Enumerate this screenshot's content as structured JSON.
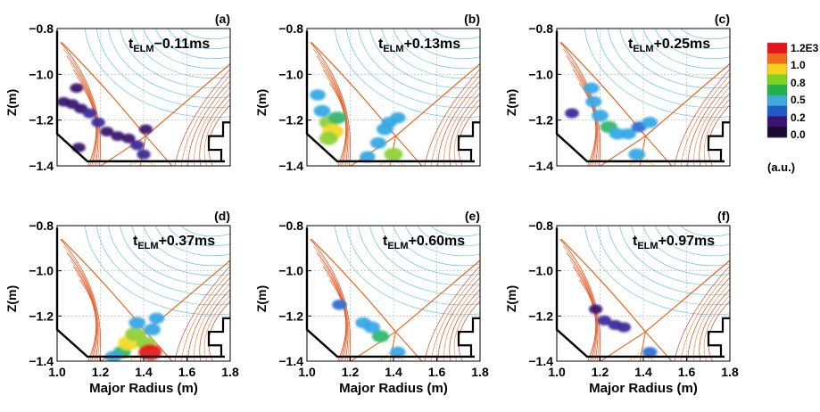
{
  "colorbar": {
    "ticks": [
      "1.2E3",
      "1.0",
      "0.8",
      "0.5",
      "0.2",
      "0.0"
    ],
    "unit": "(a.u.)",
    "colors": [
      "#e8141b",
      "#f26b1d",
      "#f7d21c",
      "#7ed321",
      "#22b14c",
      "#3fa9e0",
      "#1e5bc6",
      "#3a1470",
      "#1a0a30"
    ]
  },
  "chart_data": [
    {
      "type": "heatmap",
      "panel": "(a)",
      "time_prefix": "t",
      "time_sub": "ELM",
      "time_suffix": "−0.11ms",
      "ylabel": "Z(m)",
      "xlabel": "",
      "xlim": [
        1.0,
        1.8
      ],
      "ylim": [
        -1.4,
        -0.8
      ],
      "x_ticks": [],
      "y_ticks": [
        "−0.8",
        "−1.0",
        "−1.2",
        "−1.4"
      ],
      "blobs": [
        {
          "x": 1.03,
          "y": -1.12,
          "v": 0.08
        },
        {
          "x": 1.07,
          "y": -1.13,
          "v": 0.1
        },
        {
          "x": 1.11,
          "y": -1.15,
          "v": 0.1
        },
        {
          "x": 1.15,
          "y": -1.17,
          "v": 0.12
        },
        {
          "x": 1.19,
          "y": -1.21,
          "v": 0.12
        },
        {
          "x": 1.23,
          "y": -1.25,
          "v": 0.1
        },
        {
          "x": 1.28,
          "y": -1.27,
          "v": 0.1
        },
        {
          "x": 1.33,
          "y": -1.28,
          "v": 0.1
        },
        {
          "x": 1.37,
          "y": -1.31,
          "v": 0.12
        },
        {
          "x": 1.4,
          "y": -1.35,
          "v": 0.12
        },
        {
          "x": 1.09,
          "y": -1.06,
          "v": 0.08
        },
        {
          "x": 1.41,
          "y": -1.24,
          "v": 0.1
        },
        {
          "x": 1.1,
          "y": -1.32,
          "v": 0.1
        }
      ]
    },
    {
      "type": "heatmap",
      "panel": "(b)",
      "time_prefix": "t",
      "time_sub": "ELM",
      "time_suffix": "+0.13ms",
      "ylabel": "Z(m)",
      "xlabel": "",
      "xlim": [
        1.0,
        1.8
      ],
      "ylim": [
        -1.4,
        -0.8
      ],
      "x_ticks": [],
      "y_ticks": [
        "−0.8",
        "−1.0",
        "−1.2",
        "−1.4"
      ],
      "blobs": [
        {
          "x": 1.05,
          "y": -1.09,
          "v": 0.3
        },
        {
          "x": 1.07,
          "y": -1.16,
          "v": 0.4
        },
        {
          "x": 1.1,
          "y": -1.21,
          "v": 0.6
        },
        {
          "x": 1.12,
          "y": -1.25,
          "v": 0.85
        },
        {
          "x": 1.1,
          "y": -1.28,
          "v": 0.6
        },
        {
          "x": 1.14,
          "y": -1.19,
          "v": 0.5
        },
        {
          "x": 1.28,
          "y": -1.36,
          "v": 0.3
        },
        {
          "x": 1.33,
          "y": -1.3,
          "v": 0.35
        },
        {
          "x": 1.36,
          "y": -1.24,
          "v": 0.4
        },
        {
          "x": 1.38,
          "y": -1.21,
          "v": 0.3
        },
        {
          "x": 1.4,
          "y": -1.35,
          "v": 0.6
        },
        {
          "x": 1.42,
          "y": -1.19,
          "v": 0.3
        }
      ]
    },
    {
      "type": "heatmap",
      "panel": "(c)",
      "time_prefix": "t",
      "time_sub": "ELM",
      "time_suffix": "+0.25ms",
      "ylabel": "Z(m)",
      "xlabel": "",
      "xlim": [
        1.0,
        1.8
      ],
      "ylim": [
        -1.4,
        -0.8
      ],
      "x_ticks": [],
      "y_ticks": [
        "−0.8",
        "−1.0",
        "−1.2",
        "−1.4"
      ],
      "blobs": [
        {
          "x": 1.16,
          "y": -1.06,
          "v": 0.3
        },
        {
          "x": 1.17,
          "y": -1.12,
          "v": 0.35
        },
        {
          "x": 1.2,
          "y": -1.18,
          "v": 0.4
        },
        {
          "x": 1.24,
          "y": -1.23,
          "v": 0.45
        },
        {
          "x": 1.28,
          "y": -1.26,
          "v": 0.35
        },
        {
          "x": 1.33,
          "y": -1.26,
          "v": 0.3
        },
        {
          "x": 1.38,
          "y": -1.23,
          "v": 0.25
        },
        {
          "x": 1.43,
          "y": -1.21,
          "v": 0.3
        },
        {
          "x": 1.37,
          "y": -1.35,
          "v": 0.4
        },
        {
          "x": 1.07,
          "y": -1.17,
          "v": 0.15
        }
      ]
    },
    {
      "type": "heatmap",
      "panel": "(d)",
      "time_prefix": "t",
      "time_sub": "ELM",
      "time_suffix": "+0.37ms",
      "ylabel": "Z(m)",
      "xlabel": "Major Radius (m)",
      "xlim": [
        1.0,
        1.8
      ],
      "ylim": [
        -1.4,
        -0.8
      ],
      "x_ticks": [
        "1.0",
        "1.2",
        "1.4",
        "1.6",
        "1.8"
      ],
      "y_ticks": [
        "−0.8",
        "−1.0",
        "−1.2",
        "−1.4"
      ],
      "blobs": [
        {
          "x": 1.3,
          "y": -1.36,
          "v": 0.5
        },
        {
          "x": 1.33,
          "y": -1.32,
          "v": 0.8
        },
        {
          "x": 1.36,
          "y": -1.28,
          "v": 0.7
        },
        {
          "x": 1.37,
          "y": -1.23,
          "v": 0.4
        },
        {
          "x": 1.41,
          "y": -1.32,
          "v": 0.6
        },
        {
          "x": 1.43,
          "y": -1.36,
          "v": 1.0
        },
        {
          "x": 1.44,
          "y": -1.26,
          "v": 0.4
        },
        {
          "x": 1.46,
          "y": -1.21,
          "v": 0.3
        },
        {
          "x": 1.26,
          "y": -1.38,
          "v": 0.4
        }
      ]
    },
    {
      "type": "heatmap",
      "panel": "(e)",
      "time_prefix": "t",
      "time_sub": "ELM",
      "time_suffix": "+0.60ms",
      "ylabel": "Z(m)",
      "xlabel": "Major Radius (m)",
      "xlim": [
        1.0,
        1.8
      ],
      "ylim": [
        -1.4,
        -0.8
      ],
      "x_ticks": [
        "1.0",
        "1.2",
        "1.4",
        "1.6",
        "1.8"
      ],
      "y_ticks": [
        "−0.8",
        "−1.0",
        "−1.2",
        "−1.4"
      ],
      "blobs": [
        {
          "x": 1.26,
          "y": -1.23,
          "v": 0.3
        },
        {
          "x": 1.3,
          "y": -1.25,
          "v": 0.4
        },
        {
          "x": 1.34,
          "y": -1.29,
          "v": 0.45
        },
        {
          "x": 1.15,
          "y": -1.15,
          "v": 0.2
        },
        {
          "x": 1.42,
          "y": -1.36,
          "v": 0.3
        }
      ]
    },
    {
      "type": "heatmap",
      "panel": "(f)",
      "time_prefix": "t",
      "time_sub": "ELM",
      "time_suffix": "+0.97ms",
      "ylabel": "Z(m)",
      "xlabel": "Major Radius (m)",
      "xlim": [
        1.0,
        1.8
      ],
      "ylim": [
        -1.4,
        -0.8
      ],
      "x_ticks": [
        "1.0",
        "1.2",
        "1.4",
        "1.6",
        "1.8"
      ],
      "y_ticks": [
        "−0.8",
        "−1.0",
        "−1.2",
        "−1.4"
      ],
      "blobs": [
        {
          "x": 1.22,
          "y": -1.22,
          "v": 0.15
        },
        {
          "x": 1.27,
          "y": -1.24,
          "v": 0.15
        },
        {
          "x": 1.31,
          "y": -1.25,
          "v": 0.15
        },
        {
          "x": 1.43,
          "y": -1.36,
          "v": 0.2
        },
        {
          "x": 1.18,
          "y": -1.17,
          "v": 0.1
        }
      ]
    }
  ]
}
